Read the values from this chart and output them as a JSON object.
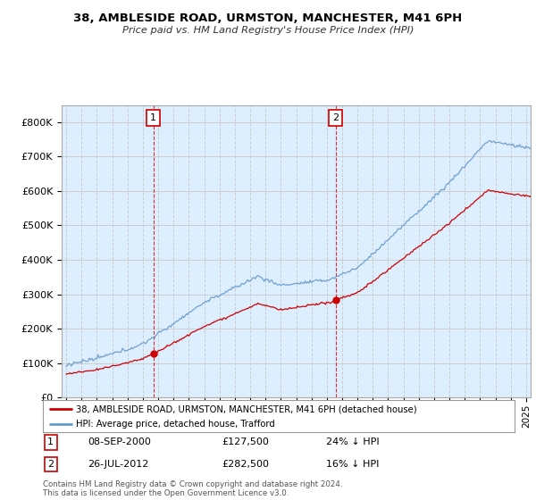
{
  "title": "38, AMBLESIDE ROAD, URMSTON, MANCHESTER, M41 6PH",
  "subtitle": "Price paid vs. HM Land Registry's House Price Index (HPI)",
  "legend_label_red": "38, AMBLESIDE ROAD, URMSTON, MANCHESTER, M41 6PH (detached house)",
  "legend_label_blue": "HPI: Average price, detached house, Trafford",
  "annotation1_label": "1",
  "annotation1_date": "08-SEP-2000",
  "annotation1_price": "£127,500",
  "annotation1_hpi": "24% ↓ HPI",
  "annotation2_label": "2",
  "annotation2_date": "26-JUL-2012",
  "annotation2_price": "£282,500",
  "annotation2_hpi": "16% ↓ HPI",
  "footer": "Contains HM Land Registry data © Crown copyright and database right 2024.\nThis data is licensed under the Open Government Licence v3.0.",
  "red_color": "#cc0000",
  "blue_color": "#6699cc",
  "background_color": "#ffffff",
  "grid_color": "#cccccc",
  "plot_bg_color": "#ddeeff",
  "ylim": [
    0,
    850000
  ],
  "yticks": [
    0,
    100000,
    200000,
    300000,
    400000,
    500000,
    600000,
    700000,
    800000
  ],
  "ytick_labels": [
    "£0",
    "£100K",
    "£200K",
    "£300K",
    "£400K",
    "£500K",
    "£600K",
    "£700K",
    "£800K"
  ],
  "sale1_x": 2000.69,
  "sale1_y": 127500,
  "sale2_x": 2012.57,
  "sale2_y": 282500,
  "xlim_start": 1994.7,
  "xlim_end": 2025.3
}
